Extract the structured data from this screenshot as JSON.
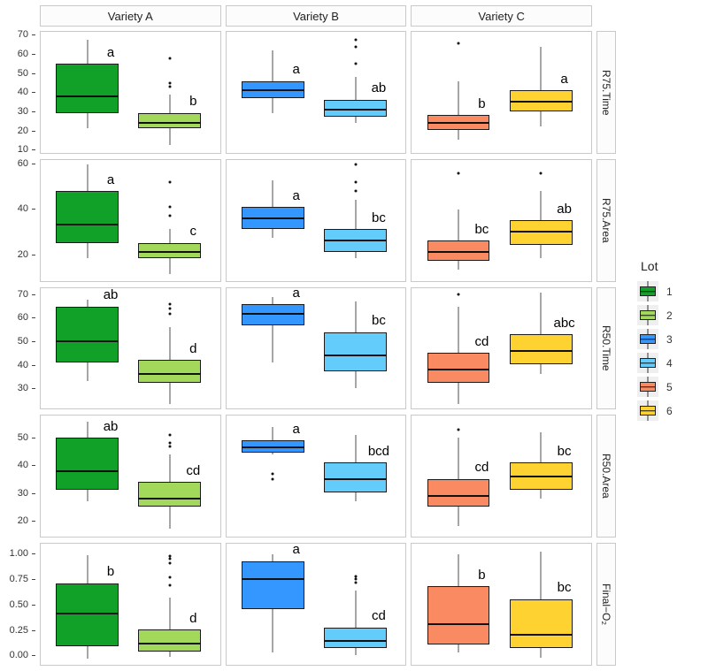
{
  "legend": {
    "title": "Lot",
    "items": [
      {
        "label": "1",
        "color": "#11A028"
      },
      {
        "label": "2",
        "color": "#A2D95A"
      },
      {
        "label": "3",
        "color": "#3497FF"
      },
      {
        "label": "4",
        "color": "#63CCFA"
      },
      {
        "label": "5",
        "color": "#FA8A62"
      },
      {
        "label": "6",
        "color": "#FDD231"
      }
    ]
  },
  "chart_data": {
    "type": "boxplot",
    "layout": "facet-grid",
    "grid": "3 facet columns (Variety) x 5 facet rows (measurement), 2 boxes (Lot) per panel",
    "facet_cols": [
      "Variety A",
      "Variety B",
      "Variety C"
    ],
    "legend_position": "right",
    "rows": [
      {
        "label": "R75.Time",
        "ylim": [
          8,
          72
        ],
        "yticks": [
          10,
          20,
          30,
          40,
          50,
          60,
          70
        ],
        "ytick_labels": [
          "10",
          "20",
          "30",
          "40",
          "50",
          "60",
          "70"
        ],
        "panels": [
          {
            "col": "Variety A",
            "boxes": [
              {
                "lot": "1",
                "low": 21,
                "q1": 29,
                "median": 38,
                "q3": 55,
                "high": 68,
                "outliers": [],
                "sig": "a"
              },
              {
                "lot": "2",
                "low": 12,
                "q1": 21,
                "median": 24,
                "q3": 29,
                "high": 39,
                "outliers": [
                  43,
                  45,
                  58
                ],
                "sig": "b"
              }
            ]
          },
          {
            "col": "Variety B",
            "boxes": [
              {
                "lot": "3",
                "low": 29,
                "q1": 37,
                "median": 41,
                "q3": 46,
                "high": 62,
                "outliers": [],
                "sig": "a"
              },
              {
                "lot": "4",
                "low": 24,
                "q1": 27,
                "median": 31,
                "q3": 36,
                "high": 48,
                "outliers": [
                  55,
                  64,
                  68
                ],
                "sig": "ab"
              }
            ]
          },
          {
            "col": "Variety C",
            "boxes": [
              {
                "lot": "5",
                "low": 15,
                "q1": 20,
                "median": 24,
                "q3": 28,
                "high": 46,
                "outliers": [
                  66
                ],
                "sig": "b"
              },
              {
                "lot": "6",
                "low": 22,
                "q1": 30,
                "median": 35,
                "q3": 41,
                "high": 64,
                "outliers": [],
                "sig": "a"
              }
            ]
          }
        ]
      },
      {
        "label": "R75.Area",
        "ylim": [
          8,
          62
        ],
        "yticks": [
          20,
          40,
          60
        ],
        "ytick_labels": [
          "20",
          "40",
          "60"
        ],
        "panels": [
          {
            "col": "Variety A",
            "boxes": [
              {
                "lot": "1",
                "low": 18,
                "q1": 25,
                "median": 33,
                "q3": 48,
                "high": 60,
                "outliers": [],
                "sig": "a"
              },
              {
                "lot": "2",
                "low": 11,
                "q1": 18,
                "median": 21,
                "q3": 25,
                "high": 31,
                "outliers": [
                  37,
                  41,
                  52
                ],
                "sig": "c"
              }
            ]
          },
          {
            "col": "Variety B",
            "boxes": [
              {
                "lot": "3",
                "low": 27,
                "q1": 31,
                "median": 36,
                "q3": 41,
                "high": 53,
                "outliers": [],
                "sig": "a"
              },
              {
                "lot": "4",
                "low": 18,
                "q1": 21,
                "median": 26,
                "q3": 31,
                "high": 44,
                "outliers": [
                  48,
                  52,
                  60
                ],
                "sig": "bc"
              }
            ]
          },
          {
            "col": "Variety C",
            "boxes": [
              {
                "lot": "5",
                "low": 13,
                "q1": 17,
                "median": 21,
                "q3": 26,
                "high": 40,
                "outliers": [
                  56
                ],
                "sig": "bc"
              },
              {
                "lot": "6",
                "low": 18,
                "q1": 24,
                "median": 30,
                "q3": 35,
                "high": 48,
                "outliers": [
                  56
                ],
                "sig": "ab"
              }
            ]
          }
        ]
      },
      {
        "label": "R50.Time",
        "ylim": [
          21,
          73
        ],
        "yticks": [
          30,
          40,
          50,
          60,
          70
        ],
        "ytick_labels": [
          "30",
          "40",
          "50",
          "60",
          "70"
        ],
        "panels": [
          {
            "col": "Variety A",
            "boxes": [
              {
                "lot": "1",
                "low": 33,
                "q1": 41,
                "median": 50,
                "q3": 65,
                "high": 68,
                "outliers": [],
                "sig": "ab"
              },
              {
                "lot": "2",
                "low": 23,
                "q1": 32,
                "median": 36,
                "q3": 42,
                "high": 56,
                "outliers": [
                  62,
                  64,
                  66
                ],
                "sig": "d"
              }
            ]
          },
          {
            "col": "Variety B",
            "boxes": [
              {
                "lot": "3",
                "low": 41,
                "q1": 57,
                "median": 62,
                "q3": 66,
                "high": 69,
                "outliers": [],
                "sig": "a"
              },
              {
                "lot": "4",
                "low": 30,
                "q1": 37,
                "median": 44,
                "q3": 54,
                "high": 67,
                "outliers": [],
                "sig": "bc"
              }
            ]
          },
          {
            "col": "Variety C",
            "boxes": [
              {
                "lot": "5",
                "low": 23,
                "q1": 32,
                "median": 38,
                "q3": 45,
                "high": 65,
                "outliers": [
                  70
                ],
                "sig": "cd"
              },
              {
                "lot": "6",
                "low": 36,
                "q1": 40,
                "median": 46,
                "q3": 53,
                "high": 71,
                "outliers": [],
                "sig": "abc"
              }
            ]
          }
        ]
      },
      {
        "label": "R50.Area",
        "ylim": [
          14,
          58
        ],
        "yticks": [
          20,
          30,
          40,
          50
        ],
        "ytick_labels": [
          "20",
          "30",
          "40",
          "50"
        ],
        "panels": [
          {
            "col": "Variety A",
            "boxes": [
              {
                "lot": "1",
                "low": 27,
                "q1": 31,
                "median": 38,
                "q3": 50,
                "high": 56,
                "outliers": [],
                "sig": "ab"
              },
              {
                "lot": "2",
                "low": 17,
                "q1": 25,
                "median": 28,
                "q3": 34,
                "high": 44,
                "outliers": [
                  47,
                  48,
                  51
                ],
                "sig": "cd"
              }
            ]
          },
          {
            "col": "Variety B",
            "boxes": [
              {
                "lot": "3",
                "low": 44,
                "q1": 44.5,
                "median": 46.5,
                "q3": 49,
                "high": 54,
                "outliers": [
                  35,
                  37
                ],
                "sig": "a"
              },
              {
                "lot": "4",
                "low": 27,
                "q1": 30,
                "median": 35,
                "q3": 41,
                "high": 51,
                "outliers": [],
                "sig": "bcd"
              }
            ]
          },
          {
            "col": "Variety C",
            "boxes": [
              {
                "lot": "5",
                "low": 18,
                "q1": 25,
                "median": 29,
                "q3": 35,
                "high": 50,
                "outliers": [
                  53
                ],
                "sig": "cd"
              },
              {
                "lot": "6",
                "low": 28,
                "q1": 31,
                "median": 36,
                "q3": 41,
                "high": 52,
                "outliers": [],
                "sig": "bc"
              }
            ]
          }
        ]
      },
      {
        "label": "Final−O₂",
        "ylim": [
          -0.1,
          1.1
        ],
        "yticks": [
          0,
          0.25,
          0.5,
          0.75,
          1
        ],
        "ytick_labels": [
          "0.00",
          "0.25",
          "0.50",
          "0.75",
          "1.00"
        ],
        "panels": [
          {
            "col": "Variety A",
            "boxes": [
              {
                "lot": "1",
                "low": -0.04,
                "q1": 0.08,
                "median": 0.41,
                "q3": 0.71,
                "high": 0.99,
                "outliers": [],
                "sig": "b"
              },
              {
                "lot": "2",
                "low": -0.02,
                "q1": 0.03,
                "median": 0.11,
                "q3": 0.25,
                "high": 0.57,
                "outliers": [
                  0.69,
                  0.77,
                  0.91,
                  0.95,
                  0.98
                ],
                "sig": "d"
              }
            ]
          },
          {
            "col": "Variety B",
            "boxes": [
              {
                "lot": "3",
                "low": 0.02,
                "q1": 0.45,
                "median": 0.75,
                "q3": 0.93,
                "high": 1.0,
                "outliers": [],
                "sig": "a"
              },
              {
                "lot": "4",
                "low": 0.0,
                "q1": 0.07,
                "median": 0.14,
                "q3": 0.27,
                "high": 0.64,
                "outliers": [
                  0.72,
                  0.75,
                  0.78
                ],
                "sig": "cd"
              }
            ]
          },
          {
            "col": "Variety C",
            "boxes": [
              {
                "lot": "5",
                "low": 0.02,
                "q1": 0.1,
                "median": 0.3,
                "q3": 0.68,
                "high": 1.0,
                "outliers": [],
                "sig": "b"
              },
              {
                "lot": "6",
                "low": -0.03,
                "q1": 0.07,
                "median": 0.2,
                "q3": 0.55,
                "high": 1.02,
                "outliers": [],
                "sig": "bc"
              }
            ]
          }
        ]
      }
    ]
  }
}
